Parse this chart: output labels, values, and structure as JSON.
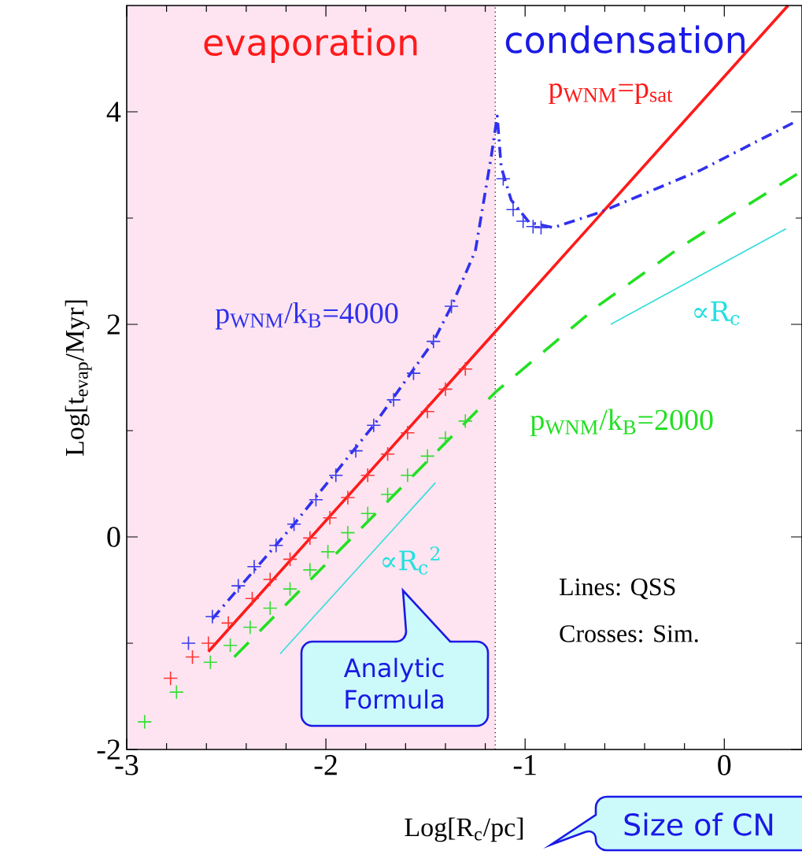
{
  "chart_data": {
    "type": "line",
    "xlabel": "Log[R$_{c}$/pc]",
    "ylabel": "Log[t$_{evap}$/Myr]",
    "xlim": [
      -3,
      0.39
    ],
    "ylim": [
      -2,
      5.0
    ],
    "xticks": [
      -3,
      -2,
      -1,
      0
    ],
    "yticks": [
      -2,
      0,
      2,
      4
    ],
    "series": [
      {
        "name": "p$_{WNM}$=p$_{sat}$",
        "color": "#ff1a1a",
        "line_style": "solid",
        "x": [
          -2.59,
          -1.15,
          0.32
        ],
        "values": [
          -1.08,
          1.93,
          5.0
        ]
      },
      {
        "name": "p$_{WNM}$/k$_{B}$=4000",
        "color": "#3030ee",
        "line_style": "dashdot",
        "x": [
          -2.57,
          -2.16,
          -1.76,
          -1.46,
          -1.37,
          -1.25,
          -1.17,
          -1.14,
          -1.12,
          -1.07,
          -0.98,
          -0.86,
          -0.63,
          -0.12,
          0.36
        ],
        "values": [
          -0.77,
          0.12,
          1.05,
          1.84,
          2.17,
          2.69,
          3.58,
          3.96,
          3.48,
          3.17,
          2.96,
          2.91,
          3.05,
          3.45,
          3.91
        ]
      },
      {
        "name": "p$_{WNM}$/k$_{B}$=2000",
        "color": "#22e022",
        "line_style": "dashed",
        "x": [
          -2.46,
          -1.15,
          -0.63,
          -0.21,
          0.37
        ],
        "values": [
          -1.13,
          1.36,
          2.18,
          2.74,
          3.42
        ]
      },
      {
        "type": "scatter",
        "marker": "cross",
        "color": "#ff3333",
        "x": [
          -1.3,
          -1.4,
          -1.49,
          -1.59,
          -1.69,
          -1.79,
          -1.89,
          -1.98,
          -2.08,
          -2.18,
          -2.28,
          -2.37,
          -2.49,
          -2.59,
          -2.67,
          -2.78
        ],
        "values": [
          1.58,
          1.39,
          1.18,
          0.98,
          0.78,
          0.58,
          0.37,
          0.18,
          -0.01,
          -0.21,
          -0.4,
          -0.58,
          -0.81,
          -1.0,
          -1.13,
          -1.33
        ]
      },
      {
        "type": "scatter",
        "marker": "cross",
        "color": "#3a3aee",
        "x": [
          -1.37,
          -1.46,
          -1.56,
          -1.66,
          -1.76,
          -1.85,
          -1.95,
          -2.05,
          -2.16,
          -2.25,
          -2.36,
          -2.44,
          -2.57,
          -2.69,
          -1.11,
          -1.06,
          -1.01,
          -0.96,
          -0.92
        ],
        "values": [
          2.17,
          1.84,
          1.54,
          1.29,
          1.05,
          0.81,
          0.58,
          0.35,
          0.12,
          -0.08,
          -0.28,
          -0.46,
          -0.75,
          -1.0,
          3.37,
          3.08,
          2.97,
          2.92,
          2.91
        ]
      },
      {
        "type": "scatter",
        "marker": "cross",
        "color": "#33dd33",
        "x": [
          -1.3,
          -1.4,
          -1.49,
          -1.59,
          -1.69,
          -1.79,
          -1.89,
          -1.99,
          -2.08,
          -2.18,
          -2.28,
          -2.38,
          -2.48,
          -2.58,
          -2.75,
          -2.91
        ],
        "values": [
          1.09,
          0.93,
          0.76,
          0.58,
          0.4,
          0.22,
          0.04,
          -0.14,
          -0.31,
          -0.49,
          -0.67,
          -0.85,
          -1.02,
          -1.18,
          -1.46,
          -1.74
        ]
      },
      {
        "color": "#33dddd",
        "line_style": "solid",
        "x": [
          -2.23,
          -1.45
        ],
        "values": [
          -1.1,
          0.51
        ]
      },
      {
        "color": "#33dddd",
        "line_style": "solid",
        "x": [
          -0.57,
          0.31
        ],
        "values": [
          2.0,
          2.9
        ]
      }
    ],
    "bands": [
      {
        "axis": "x",
        "from": -3,
        "to": -1.15,
        "label": "evaporation",
        "color": "#fde4f0"
      }
    ],
    "ref_lines": [
      {
        "axis": "x",
        "value": -1.15,
        "line_style": "dotted"
      }
    ],
    "annotations": [
      "condensation",
      "Lines: QSS",
      "Crosses: Sim.",
      "Analytic Formula",
      "Size of CN",
      "∝R$_{c}$$^{2}$",
      "∝R$_{c}$"
    ]
  }
}
